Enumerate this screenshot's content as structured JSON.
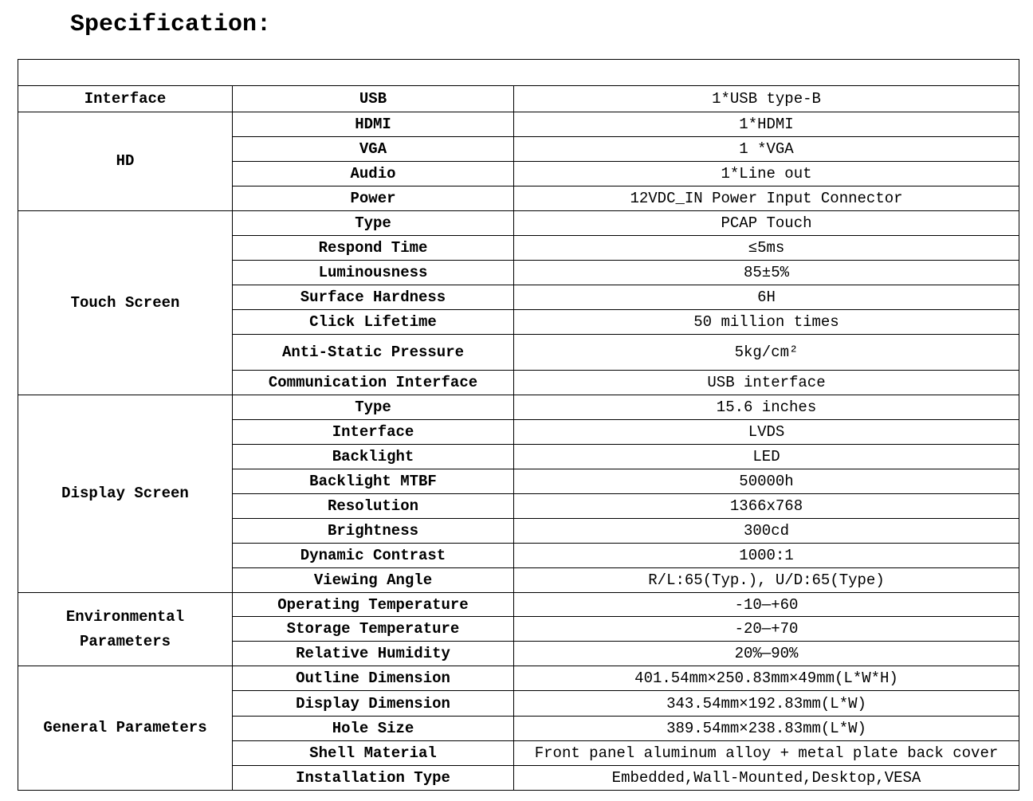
{
  "title": "Specification:",
  "groups": [
    {
      "label": "Interface",
      "rows": [
        {
          "item": "USB",
          "value": "1*USB type-B"
        }
      ]
    },
    {
      "label": "HD",
      "rows": [
        {
          "item": "HDMI",
          "value": "1*HDMI"
        },
        {
          "item": "VGA",
          "value": "1 *VGA"
        },
        {
          "item": "Audio",
          "value": "1*Line out"
        },
        {
          "item": "Power",
          "value": "12VDC_IN Power Input Connector"
        }
      ]
    },
    {
      "label": "Touch Screen",
      "rows": [
        {
          "item": "Type",
          "value": "PCAP Touch"
        },
        {
          "item": "Respond Time",
          "value": "≤5ms"
        },
        {
          "item": "Luminousness",
          "value": "85±5%"
        },
        {
          "item": "Surface Hardness",
          "value": "6H"
        },
        {
          "item": "Click Lifetime",
          "value": "50 million times"
        },
        {
          "item": "Anti-Static Pressure",
          "value": "5kg/cm²"
        },
        {
          "item": "Communication Interface",
          "value": "USB interface"
        }
      ]
    },
    {
      "label": "Display Screen",
      "rows": [
        {
          "item": "Type",
          "value": "15.6 inches"
        },
        {
          "item": "Interface",
          "value": "LVDS"
        },
        {
          "item": "Backlight",
          "value": "LED"
        },
        {
          "item": "Backlight MTBF",
          "value": "50000h"
        },
        {
          "item": "Resolution",
          "value": "1366x768"
        },
        {
          "item": "Brightness",
          "value": "300cd"
        },
        {
          "item": "Dynamic Contrast",
          "value": "1000:1"
        },
        {
          "item": "Viewing Angle",
          "value": "R/L:65(Typ.), U/D:65(Type)"
        }
      ]
    },
    {
      "label": "Environmental Parameters",
      "rows": [
        {
          "item": "Operating Temperature",
          "value": "-10—+60"
        },
        {
          "item": "Storage Temperature",
          "value": "-20—+70"
        },
        {
          "item": "Relative Humidity",
          "value": "20%—90%"
        }
      ]
    },
    {
      "label": "General Parameters",
      "rows": [
        {
          "item": "Outline Dimension",
          "value": "401.54mm×250.83mm×49mm(L*W*H)"
        },
        {
          "item": "Display Dimension",
          "value": "343.54mm×192.83mm(L*W)"
        },
        {
          "item": "Hole Size",
          "value": "389.54mm×238.83mm(L*W)"
        },
        {
          "item": "Shell Material",
          "value": "Front panel aluminum alloy + metal plate back cover"
        },
        {
          "item": "Installation Type",
          "value": "Embedded,Wall-Mounted,Desktop,VESA"
        }
      ]
    }
  ]
}
